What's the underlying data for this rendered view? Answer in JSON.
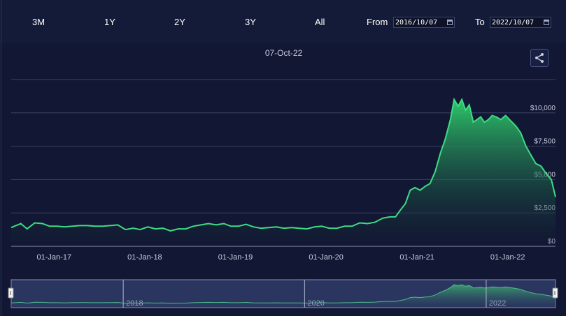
{
  "toolbar": {
    "ranges": [
      "3M",
      "1Y",
      "2Y",
      "3Y",
      "All"
    ],
    "from_label": "From",
    "from_value": "2016/10/07",
    "to_label": "To",
    "to_value": "2022/10/07"
  },
  "colors": {
    "line": "#3ddc84",
    "fill_top": "#2ec76a",
    "background": "#121833",
    "grid": "#3a4266",
    "navigator_fill": "#2a3560"
  },
  "chart_data": {
    "type": "area",
    "title": "07-Oct-22",
    "xlabel": "",
    "ylabel": "",
    "ylim": [
      0,
      12500
    ],
    "y_ticks": [
      "$0",
      "$2,500",
      "$5,000",
      "$7,500",
      "$10,000"
    ],
    "y_tick_values": [
      0,
      2500,
      5000,
      7500,
      10000
    ],
    "x_ticks": [
      "01-Jan-17",
      "01-Jan-18",
      "01-Jan-19",
      "01-Jan-20",
      "01-Jan-21",
      "01-Jan-22"
    ],
    "x_tick_dates": [
      "2017-01-01",
      "2018-01-01",
      "2019-01-01",
      "2020-01-01",
      "2021-01-01",
      "2022-01-01"
    ],
    "xlim": [
      "2016-10-07",
      "2022-10-07"
    ],
    "grid": true,
    "legend": "none",
    "navigator_labels": [
      "2018",
      "2020",
      "2022"
    ],
    "navigator_label_dates": [
      "2018-01-01",
      "2020-01-01",
      "2022-01-01"
    ],
    "series": [
      {
        "x": [
          "2016-10-07",
          "2016-11-15",
          "2016-12-10",
          "2017-01-10",
          "2017-02-10",
          "2017-03-10",
          "2017-04-10",
          "2017-05-10",
          "2017-06-10",
          "2017-07-10",
          "2017-08-10",
          "2017-09-10",
          "2017-10-10",
          "2017-11-10",
          "2017-12-10",
          "2018-01-10",
          "2018-02-10",
          "2018-03-10",
          "2018-04-10",
          "2018-05-10",
          "2018-06-10",
          "2018-07-10",
          "2018-08-10",
          "2018-09-10",
          "2018-10-10",
          "2018-11-10",
          "2018-12-10",
          "2019-01-10",
          "2019-02-10",
          "2019-03-10",
          "2019-04-10",
          "2019-05-10",
          "2019-06-10",
          "2019-07-10",
          "2019-08-10",
          "2019-09-10",
          "2019-10-10",
          "2019-11-10",
          "2019-12-10",
          "2020-01-10",
          "2020-02-10",
          "2020-03-10",
          "2020-04-10",
          "2020-05-10",
          "2020-06-10",
          "2020-07-10",
          "2020-08-10",
          "2020-09-10",
          "2020-10-10",
          "2020-11-10",
          "2020-12-10",
          "2021-01-01",
          "2021-01-20",
          "2021-02-10",
          "2021-03-01",
          "2021-03-20",
          "2021-04-10",
          "2021-05-01",
          "2021-05-20",
          "2021-06-10",
          "2021-07-01",
          "2021-07-20",
          "2021-08-10",
          "2021-08-25",
          "2021-09-10",
          "2021-09-25",
          "2021-10-10",
          "2021-10-25",
          "2021-11-10",
          "2021-11-25",
          "2021-12-10",
          "2021-12-25",
          "2022-01-10",
          "2022-01-25",
          "2022-02-10",
          "2022-03-01",
          "2022-03-20",
          "2022-04-10",
          "2022-05-01",
          "2022-05-20",
          "2022-06-10",
          "2022-07-01",
          "2022-07-20",
          "2022-08-10",
          "2022-09-01",
          "2022-09-20",
          "2022-10-07"
        ],
        "y": [
          1400,
          1700,
          1300,
          1750,
          1700,
          1500,
          1500,
          1450,
          1500,
          1550,
          1550,
          1500,
          1500,
          1550,
          1600,
          1250,
          1350,
          1250,
          1450,
          1300,
          1350,
          1150,
          1300,
          1300,
          1500,
          1600,
          1700,
          1600,
          1700,
          1500,
          1500,
          1650,
          1450,
          1350,
          1400,
          1450,
          1350,
          1400,
          1350,
          1300,
          1450,
          1500,
          1350,
          1350,
          1500,
          1500,
          1750,
          1700,
          1800,
          2100,
          2200,
          2200,
          2700,
          3200,
          4200,
          4400,
          4200,
          4500,
          4700,
          5600,
          7000,
          8000,
          9500,
          11000,
          10500,
          11000,
          10200,
          10600,
          9300,
          9500,
          9700,
          9300,
          9500,
          9800,
          9700,
          9500,
          9800,
          9400,
          9000,
          8500,
          7500,
          6800,
          6200,
          6000,
          5400,
          5000,
          3700
        ]
      }
    ]
  }
}
